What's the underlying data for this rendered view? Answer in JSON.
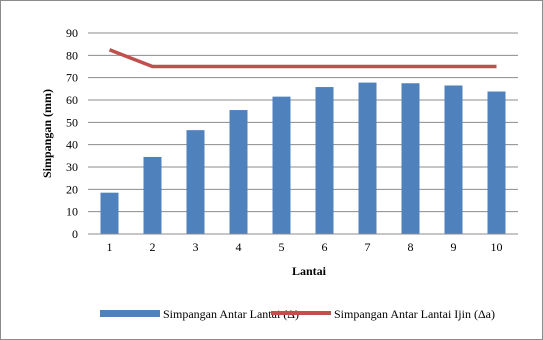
{
  "chart_data": {
    "type": "bar",
    "xlabel": "Lantai",
    "ylabel": "Simpangan (mm)",
    "ylim": [
      0,
      90
    ],
    "yticks": [
      0,
      10,
      20,
      30,
      40,
      50,
      60,
      70,
      80,
      90
    ],
    "categories": [
      "1",
      "2",
      "3",
      "4",
      "5",
      "6",
      "7",
      "8",
      "9",
      "10"
    ],
    "grid": true,
    "legend_position": "bottom",
    "series": [
      {
        "name": "Simpangan Antar Lantai (Δ)",
        "kind": "bar",
        "color": "#4f81bd",
        "values": [
          18.5,
          34.5,
          46.5,
          55.5,
          61.5,
          65.8,
          67.8,
          67.5,
          66.5,
          63.8
        ]
      },
      {
        "name": "Simpangan Antar Lantai Ijin (Δa)",
        "kind": "line",
        "color": "#c0504d",
        "values": [
          82.5,
          75,
          75,
          75,
          75,
          75,
          75,
          75,
          75,
          75
        ]
      }
    ]
  }
}
